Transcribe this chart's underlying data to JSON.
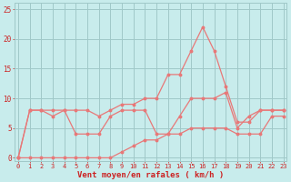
{
  "x": [
    0,
    1,
    2,
    3,
    4,
    5,
    6,
    7,
    8,
    9,
    10,
    11,
    12,
    13,
    14,
    15,
    16,
    17,
    18,
    19,
    20,
    21,
    22,
    23
  ],
  "wind_gust": [
    0,
    8,
    8,
    8,
    8,
    8,
    8,
    7,
    8,
    9,
    9,
    10,
    10,
    14,
    14,
    18,
    22,
    18,
    12,
    6,
    6,
    8,
    8,
    8
  ],
  "wind_avg": [
    0,
    8,
    8,
    7,
    8,
    4,
    4,
    4,
    7,
    8,
    8,
    8,
    4,
    4,
    7,
    10,
    10,
    10,
    11,
    5,
    7,
    8,
    8,
    8
  ],
  "wind_min": [
    0,
    0,
    0,
    0,
    0,
    0,
    0,
    0,
    0,
    1,
    2,
    3,
    3,
    4,
    4,
    5,
    5,
    5,
    5,
    4,
    4,
    4,
    7,
    7
  ],
  "bg_color": "#c8ecec",
  "line_color": "#e87878",
  "grid_color": "#a0c8c8",
  "xlabel": "Vent moyen/en rafales ( km/h )",
  "yticks": [
    0,
    5,
    10,
    15,
    20,
    25
  ],
  "ylim": [
    -0.5,
    26
  ],
  "xlim": [
    -0.3,
    23.3
  ],
  "tick_color": "#cc2222",
  "xlabel_color": "#cc2222",
  "tick_fontsize": 5.0,
  "xlabel_fontsize": 6.5
}
